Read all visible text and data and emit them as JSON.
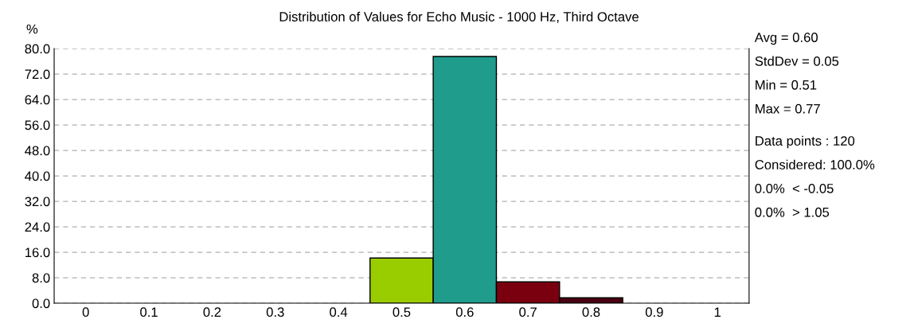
{
  "chart_data": {
    "type": "bar",
    "title": "Distribution of Values for Echo Music - 1000 Hz, Third Octave",
    "ylabel": "%",
    "categories": [
      "0",
      "0.1",
      "0.2",
      "0.3",
      "0.4",
      "0.5",
      "0.6",
      "0.7",
      "0.8",
      "0.9",
      "1"
    ],
    "values": [
      null,
      null,
      null,
      null,
      null,
      14.2,
      77.5,
      6.7,
      1.7,
      null,
      null
    ],
    "colors": [
      null,
      null,
      null,
      null,
      null,
      "#9acd00",
      "#1f9c8c",
      "#7a0010",
      "#4a0010",
      null,
      null
    ],
    "ylim": [
      0,
      80
    ],
    "yticks": [
      {
        "value": 0,
        "label": "0.0"
      },
      {
        "value": 8,
        "label": "8.0"
      },
      {
        "value": 16,
        "label": "16.0"
      },
      {
        "value": 24,
        "label": "24.0"
      },
      {
        "value": 32,
        "label": "32.0"
      },
      {
        "value": 40,
        "label": "40.0"
      },
      {
        "value": 48,
        "label": "48.0"
      },
      {
        "value": 56,
        "label": "56.0"
      },
      {
        "value": 64,
        "label": "64.0"
      },
      {
        "value": 72,
        "label": "72.0"
      },
      {
        "value": 80,
        "label": "80.0"
      }
    ],
    "grid": "y",
    "line_style": "dashed",
    "annotations": [
      "Avg = 0.60",
      "StdDev = 0.05",
      "Min = 0.51",
      "Max = 0.77",
      "Data points : 120",
      "Considered: 100.0%",
      "0.0%  < -0.05",
      "0.0%  > 1.05"
    ]
  }
}
